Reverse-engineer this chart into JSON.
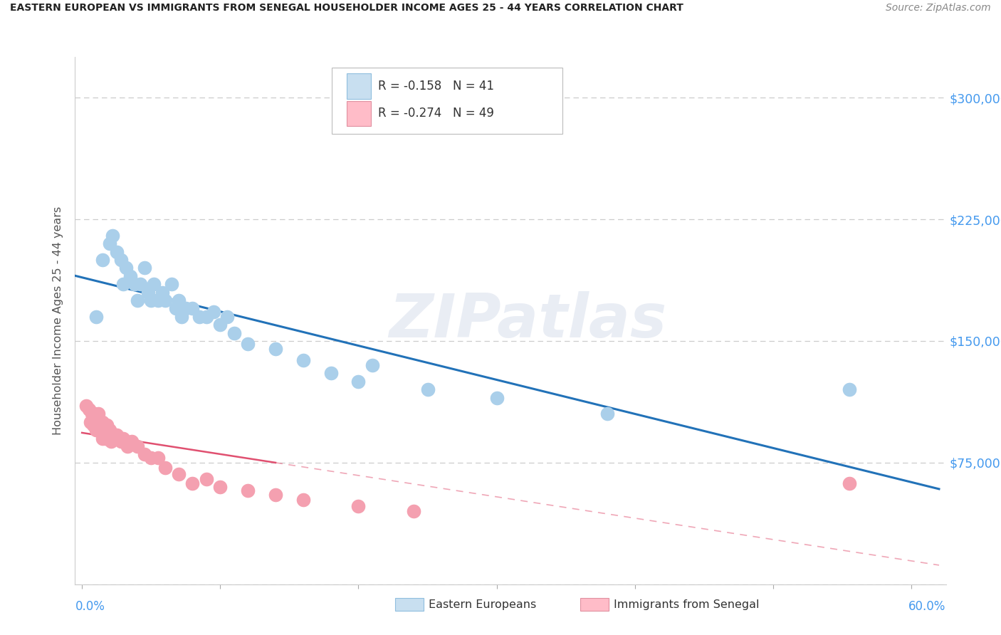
{
  "title": "EASTERN EUROPEAN VS IMMIGRANTS FROM SENEGAL HOUSEHOLDER INCOME AGES 25 - 44 YEARS CORRELATION CHART",
  "source": "Source: ZipAtlas.com",
  "ylabel": "Householder Income Ages 25 - 44 years",
  "ylim": [
    0,
    325000
  ],
  "xlim": [
    -0.005,
    0.625
  ],
  "yticks": [
    0,
    75000,
    150000,
    225000,
    300000
  ],
  "ytick_labels": [
    "",
    "$75,000",
    "$150,000",
    "$225,000",
    "$300,000"
  ],
  "xticks": [
    0.0,
    0.1,
    0.2,
    0.3,
    0.4,
    0.5,
    0.6
  ],
  "series1_label": "Eastern Europeans",
  "series1_R": "-0.158",
  "series1_N": "41",
  "series1_scatter_color": "#aacfea",
  "series1_line_color": "#2272b8",
  "series2_label": "Immigrants from Senegal",
  "series2_R": "-0.274",
  "series2_N": "49",
  "series2_scatter_color": "#f4a0b0",
  "series2_line_color": "#e05070",
  "watermark": "ZIPatlas",
  "bg_color": "#ffffff",
  "grid_color": "#cccccc",
  "right_tick_color": "#4499ee",
  "series1_x": [
    0.01,
    0.015,
    0.02,
    0.022,
    0.025,
    0.028,
    0.03,
    0.032,
    0.035,
    0.038,
    0.04,
    0.042,
    0.045,
    0.048,
    0.05,
    0.052,
    0.055,
    0.058,
    0.06,
    0.065,
    0.068,
    0.07,
    0.072,
    0.075,
    0.08,
    0.085,
    0.09,
    0.095,
    0.1,
    0.105,
    0.11,
    0.12,
    0.14,
    0.16,
    0.18,
    0.2,
    0.25,
    0.3,
    0.38,
    0.555,
    0.21
  ],
  "series1_y": [
    165000,
    200000,
    210000,
    215000,
    205000,
    200000,
    185000,
    195000,
    190000,
    185000,
    175000,
    185000,
    195000,
    180000,
    175000,
    185000,
    175000,
    180000,
    175000,
    185000,
    170000,
    175000,
    165000,
    170000,
    170000,
    165000,
    165000,
    168000,
    160000,
    165000,
    155000,
    148000,
    145000,
    138000,
    130000,
    125000,
    120000,
    115000,
    105000,
    120000,
    135000
  ],
  "series2_x": [
    0.003,
    0.005,
    0.006,
    0.007,
    0.008,
    0.008,
    0.009,
    0.009,
    0.01,
    0.01,
    0.011,
    0.011,
    0.012,
    0.012,
    0.013,
    0.013,
    0.014,
    0.014,
    0.015,
    0.015,
    0.016,
    0.017,
    0.018,
    0.018,
    0.019,
    0.02,
    0.021,
    0.022,
    0.023,
    0.025,
    0.028,
    0.03,
    0.033,
    0.036,
    0.04,
    0.045,
    0.05,
    0.055,
    0.06,
    0.07,
    0.08,
    0.09,
    0.1,
    0.12,
    0.14,
    0.16,
    0.2,
    0.24,
    0.555
  ],
  "series2_y": [
    110000,
    108000,
    100000,
    105000,
    98000,
    102000,
    100000,
    105000,
    95000,
    100000,
    95000,
    100000,
    95000,
    105000,
    95000,
    100000,
    95000,
    100000,
    90000,
    100000,
    95000,
    90000,
    95000,
    98000,
    90000,
    95000,
    88000,
    92000,
    90000,
    92000,
    88000,
    90000,
    85000,
    88000,
    85000,
    80000,
    78000,
    78000,
    72000,
    68000,
    62000,
    65000,
    60000,
    58000,
    55000,
    52000,
    48000,
    45000,
    62000
  ]
}
